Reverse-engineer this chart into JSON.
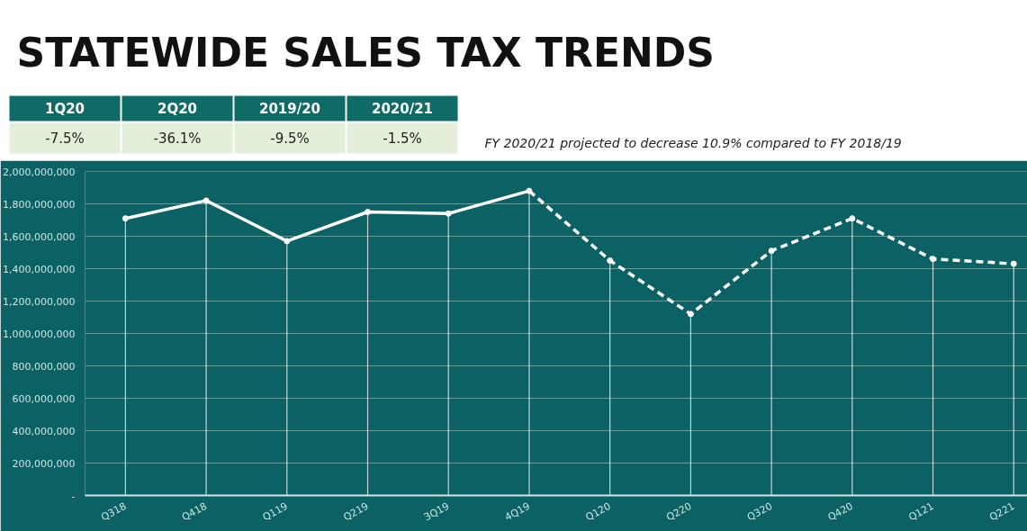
{
  "chart_data": {
    "type": "line",
    "title": "STATEWIDE SALES TAX TRENDS",
    "categories": [
      "Q318",
      "Q418",
      "Q119",
      "Q219",
      "3Q19",
      "4Q19",
      "Q120",
      "Q220",
      "Q320",
      "Q420",
      "Q121",
      "Q221"
    ],
    "series": [
      {
        "color": "#ffffff",
        "line_style": "solid",
        "values": [
          1710000000,
          1820000000,
          1570000000,
          1750000000,
          1740000000,
          1880000000,
          null,
          null,
          null,
          null,
          null,
          null
        ]
      },
      {
        "color": "#ffffff",
        "line_style": "dashed",
        "values": [
          null,
          null,
          null,
          null,
          null,
          1880000000,
          1450000000,
          1120000000,
          1510000000,
          1710000000,
          1460000000,
          1430000000
        ]
      },
      {
        "type": "lollipop",
        "color": "#ffffff",
        "values": [
          1710000000,
          1820000000,
          1570000000,
          1750000000,
          1740000000,
          1880000000,
          1450000000,
          1120000000,
          1510000000,
          1710000000,
          1460000000,
          1430000000
        ]
      }
    ],
    "ylim": [
      0,
      2000000000
    ],
    "yticks": [
      {
        "value": 0,
        "label": "-"
      },
      {
        "value": 200000000,
        "label": "200,000,000"
      },
      {
        "value": 400000000,
        "label": "400,000,000"
      },
      {
        "value": 600000000,
        "label": "600,000,000"
      },
      {
        "value": 800000000,
        "label": "800,000,000"
      },
      {
        "value": 1000000000,
        "label": "1,000,000,000"
      },
      {
        "value": 1200000000,
        "label": "1,200,000,000"
      },
      {
        "value": 1400000000,
        "label": "1,400,000,000"
      },
      {
        "value": 1600000000,
        "label": "1,600,000,000"
      },
      {
        "value": 1800000000,
        "label": "1,800,000,000"
      },
      {
        "value": 2000000000,
        "label": "2,000,000,000"
      }
    ],
    "grid": "y",
    "marker": "none",
    "annotations": [
      "1Q20",
      "2Q20",
      "2019/20",
      "2020/21",
      "-7.5%",
      "-36.1%",
      "-9.5%",
      "-1.5%",
      "FY 2020/21 projected to decrease 10.9% compared to FY 2018/19"
    ]
  }
}
